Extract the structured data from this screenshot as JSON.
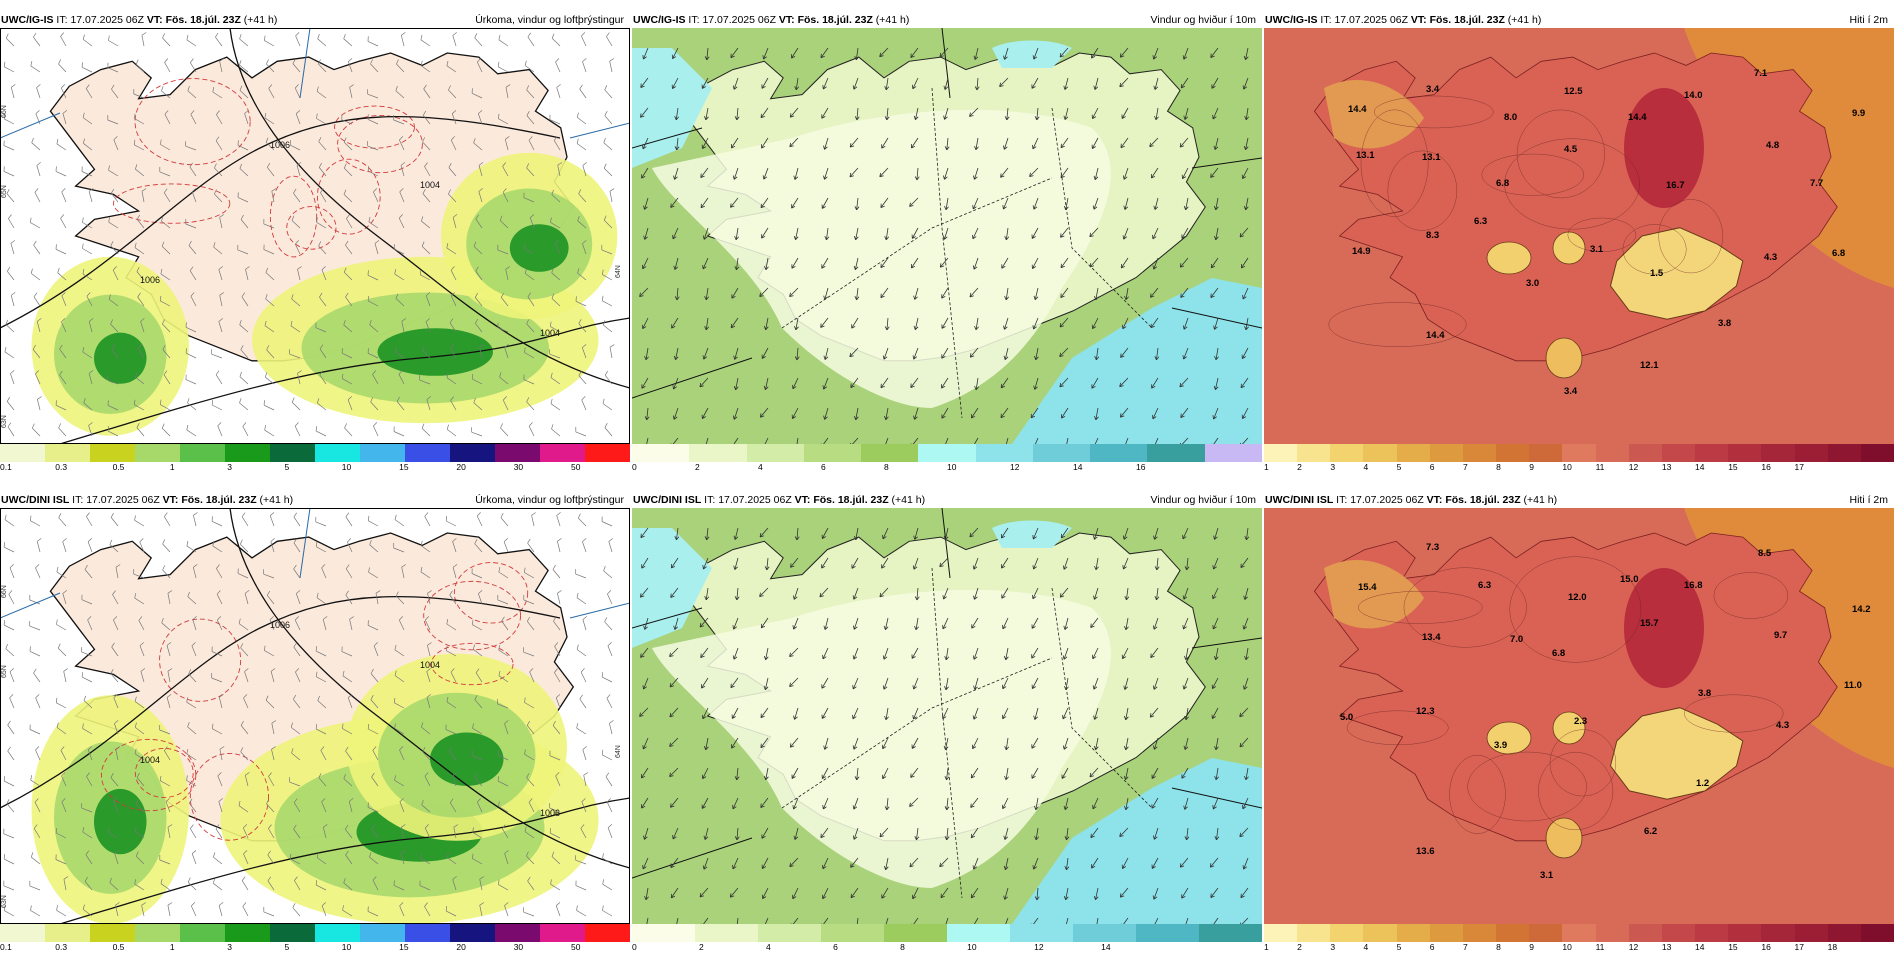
{
  "common": {
    "it_label": "IT:",
    "it_value": "17.07.2025 06Z",
    "vt_label": "VT:",
    "vt_value": "Fös. 18.júl. 23Z",
    "lead": "(+41 h)"
  },
  "rows": [
    {
      "model": "UWC/IG-IS",
      "panels": [
        {
          "type": "precip",
          "title": "Úrkoma, vindur og loftþrýstingur",
          "colorbar": {
            "colors": [
              "#f1f7d0",
              "#e6ef8a",
              "#c9d21e",
              "#a6d96a",
              "#5bc04a",
              "#1a9a1a",
              "#0b6a3a",
              "#18e6e0",
              "#43b7ec",
              "#3a4fe6",
              "#16147e",
              "#7a0a6e",
              "#e01a8a",
              "#ff1a1a"
            ],
            "labels": [
              "0.1",
              "0.3",
              "0.5",
              "1",
              "3",
              "5",
              "10",
              "15",
              "20",
              "30",
              "50"
            ],
            "label_positions": [
              0.0,
              0.143,
              0.286,
              0.429,
              0.571,
              0.714,
              0.857,
              1.0,
              1.143,
              1.286,
              1.429
            ]
          },
          "isobars": [
            "1006",
            "1004",
            "1004",
            "1006"
          ],
          "side_labels": [
            "66N",
            "65N",
            "64N",
            "63N"
          ]
        },
        {
          "type": "wind",
          "title": "Vindur og hviður í 10m",
          "colorbar": {
            "colors": [
              "#fbfde8",
              "#eaf6c8",
              "#d3eca8",
              "#b7dc82",
              "#9ccb5e",
              "#aef8f4",
              "#8ee3ea",
              "#6ecdd8",
              "#4fb6c4",
              "#389e9e",
              "#c8b8f4"
            ],
            "labels": [
              "0",
              "2",
              "4",
              "6",
              "8",
              "10",
              "12",
              "14",
              "16"
            ]
          }
        },
        {
          "type": "temp",
          "title": "Hiti í 2m",
          "colorbar": {
            "colors": [
              "#fdf2b8",
              "#f8e38e",
              "#f2d36e",
              "#ecc35a",
              "#e5ad4a",
              "#de9a3e",
              "#d88838",
              "#d27434",
              "#ce6a3a",
              "#e07a5e",
              "#d86a58",
              "#cc5852",
              "#c4474a",
              "#bc3a44",
              "#b2303e",
              "#a52638",
              "#9c1e34",
              "#8e1630",
              "#7e0e2c"
            ],
            "labels": [
              "1",
              "2",
              "3",
              "4",
              "5",
              "6",
              "7",
              "8",
              "9",
              "10",
              "11",
              "12",
              "13",
              "14",
              "15",
              "16",
              "17"
            ]
          },
          "values": [
            {
              "t": "3.4"
            },
            {
              "t": "12.5"
            },
            {
              "t": "7.1"
            },
            {
              "t": "14.4"
            },
            {
              "t": "8.0"
            },
            {
              "t": "14.0"
            },
            {
              "t": "9.9"
            },
            {
              "t": "14.4"
            },
            {
              "t": "4.5"
            },
            {
              "t": "4.8"
            },
            {
              "t": "13.1"
            },
            {
              "t": "13.1"
            },
            {
              "t": "6.8"
            },
            {
              "t": "16.7"
            },
            {
              "t": "7.7"
            },
            {
              "t": "6.3"
            },
            {
              "t": "14.9"
            },
            {
              "t": "8.3"
            },
            {
              "t": "3.1"
            },
            {
              "t": "4.3"
            },
            {
              "t": "6.8"
            },
            {
              "t": "3.0"
            },
            {
              "t": "1.5"
            },
            {
              "t": "3.8"
            },
            {
              "t": "14.4"
            },
            {
              "t": "12.1"
            },
            {
              "t": "3.4"
            }
          ]
        }
      ]
    },
    {
      "model": "UWC/DINI ISL",
      "panels": [
        {
          "type": "precip",
          "title": "Úrkoma, vindur og loftþrýstingur",
          "colorbar": {
            "colors": [
              "#f1f7d0",
              "#e6ef8a",
              "#c9d21e",
              "#a6d96a",
              "#5bc04a",
              "#1a9a1a",
              "#0b6a3a",
              "#18e6e0",
              "#43b7ec",
              "#3a4fe6",
              "#16147e",
              "#7a0a6e",
              "#e01a8a",
              "#ff1a1a"
            ],
            "labels": [
              "0.1",
              "0.3",
              "0.5",
              "1",
              "3",
              "5",
              "10",
              "15",
              "20",
              "30",
              "50"
            ]
          },
          "isobars": [
            "1006",
            "1004",
            "1006",
            "1004"
          ],
          "side_labels": [
            "66N",
            "65N",
            "64N",
            "63N"
          ]
        },
        {
          "type": "wind",
          "title": "Vindur og hviður í 10m",
          "colorbar": {
            "colors": [
              "#fbfde8",
              "#eaf6c8",
              "#d3eca8",
              "#b7dc82",
              "#9ccb5e",
              "#aef8f4",
              "#8ee3ea",
              "#6ecdd8",
              "#4fb6c4",
              "#389e9e"
            ],
            "labels": [
              "0",
              "2",
              "4",
              "6",
              "8",
              "10",
              "12",
              "14"
            ]
          }
        },
        {
          "type": "temp",
          "title": "Hiti í 2m",
          "colorbar": {
            "colors": [
              "#fdf2b8",
              "#f8e38e",
              "#f2d36e",
              "#ecc35a",
              "#e5ad4a",
              "#de9a3e",
              "#d88838",
              "#d27434",
              "#ce6a3a",
              "#e07a5e",
              "#d86a58",
              "#cc5852",
              "#c4474a",
              "#bc3a44",
              "#b2303e",
              "#a52638",
              "#9c1e34",
              "#8e1630",
              "#7e0e2c"
            ],
            "labels": [
              "1",
              "2",
              "3",
              "4",
              "5",
              "6",
              "7",
              "8",
              "9",
              "10",
              "11",
              "12",
              "13",
              "14",
              "15",
              "16",
              "17",
              "18"
            ]
          },
          "values": [
            {
              "t": "7.3"
            },
            {
              "t": "8.5"
            },
            {
              "t": "15.4"
            },
            {
              "t": "6.3"
            },
            {
              "t": "12.0"
            },
            {
              "t": "15.0"
            },
            {
              "t": "16.8"
            },
            {
              "t": "14.2"
            },
            {
              "t": "13.4"
            },
            {
              "t": "7.0"
            },
            {
              "t": "15.7"
            },
            {
              "t": "9.7"
            },
            {
              "t": "6.8"
            },
            {
              "t": "11.0"
            },
            {
              "t": "3.8"
            },
            {
              "t": "5.0"
            },
            {
              "t": "12.3"
            },
            {
              "t": "2.3"
            },
            {
              "t": "4.3"
            },
            {
              "t": "3.9"
            },
            {
              "t": "1.2"
            },
            {
              "t": "13.6"
            },
            {
              "t": "6.2"
            },
            {
              "t": "3.1"
            }
          ]
        }
      ]
    }
  ]
}
